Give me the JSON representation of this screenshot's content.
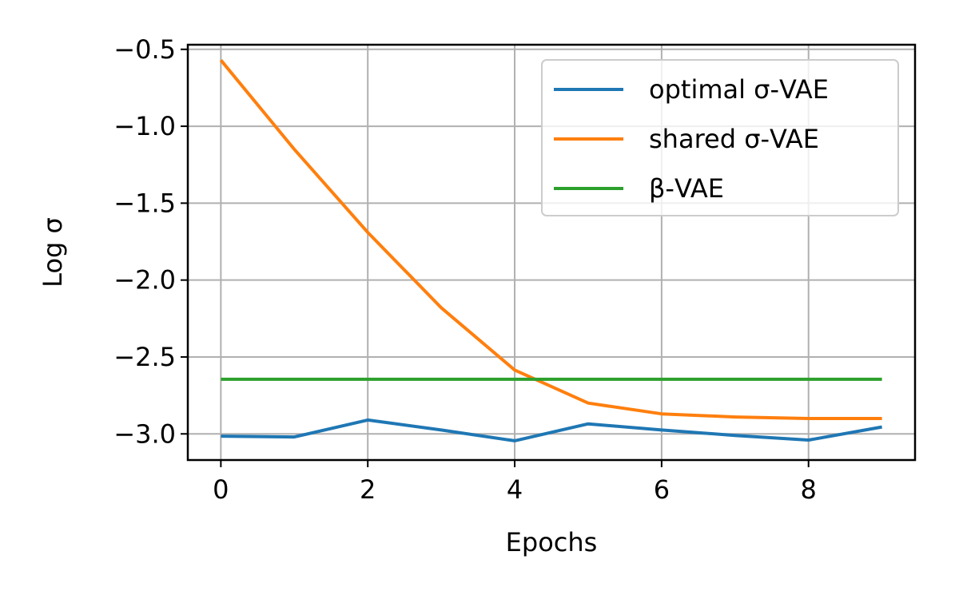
{
  "chart_data": {
    "type": "line",
    "xlabel": "Epochs",
    "ylabel": "Log σ",
    "xlim": [
      -0.45,
      9.45
    ],
    "ylim": [
      -3.17,
      -0.47
    ],
    "xticks": [
      0,
      2,
      4,
      6,
      8
    ],
    "xtick_labels": [
      "0",
      "2",
      "4",
      "6",
      "8"
    ],
    "yticks": [
      -0.5,
      -1.0,
      -1.5,
      -2.0,
      -2.5,
      -3.0
    ],
    "ytick_labels": [
      "−0.5",
      "−1.0",
      "−1.5",
      "−2.0",
      "−2.5",
      "−3.0"
    ],
    "grid": true,
    "legend_position": "top-right",
    "series": [
      {
        "name": "optimal σ-VAE",
        "color": "#1f77b4",
        "x": [
          0,
          1,
          2,
          3,
          4,
          5,
          6,
          7,
          8,
          9
        ],
        "values": [
          -3.015,
          -3.02,
          -2.91,
          -2.975,
          -3.045,
          -2.935,
          -2.975,
          -3.01,
          -3.04,
          -2.955
        ]
      },
      {
        "name": "shared σ-VAE",
        "color": "#ff7f0e",
        "x": [
          0,
          1,
          2,
          3,
          4,
          5,
          6,
          7,
          8,
          9
        ],
        "values": [
          -0.57,
          -1.15,
          -1.69,
          -2.18,
          -2.585,
          -2.8,
          -2.87,
          -2.89,
          -2.9,
          -2.9
        ]
      },
      {
        "name": "β-VAE",
        "color": "#2ca02c",
        "x": [
          0,
          1,
          2,
          3,
          4,
          5,
          6,
          7,
          8,
          9
        ],
        "values": [
          -2.645,
          -2.645,
          -2.645,
          -2.645,
          -2.645,
          -2.645,
          -2.645,
          -2.645,
          -2.645,
          -2.645
        ]
      }
    ]
  }
}
